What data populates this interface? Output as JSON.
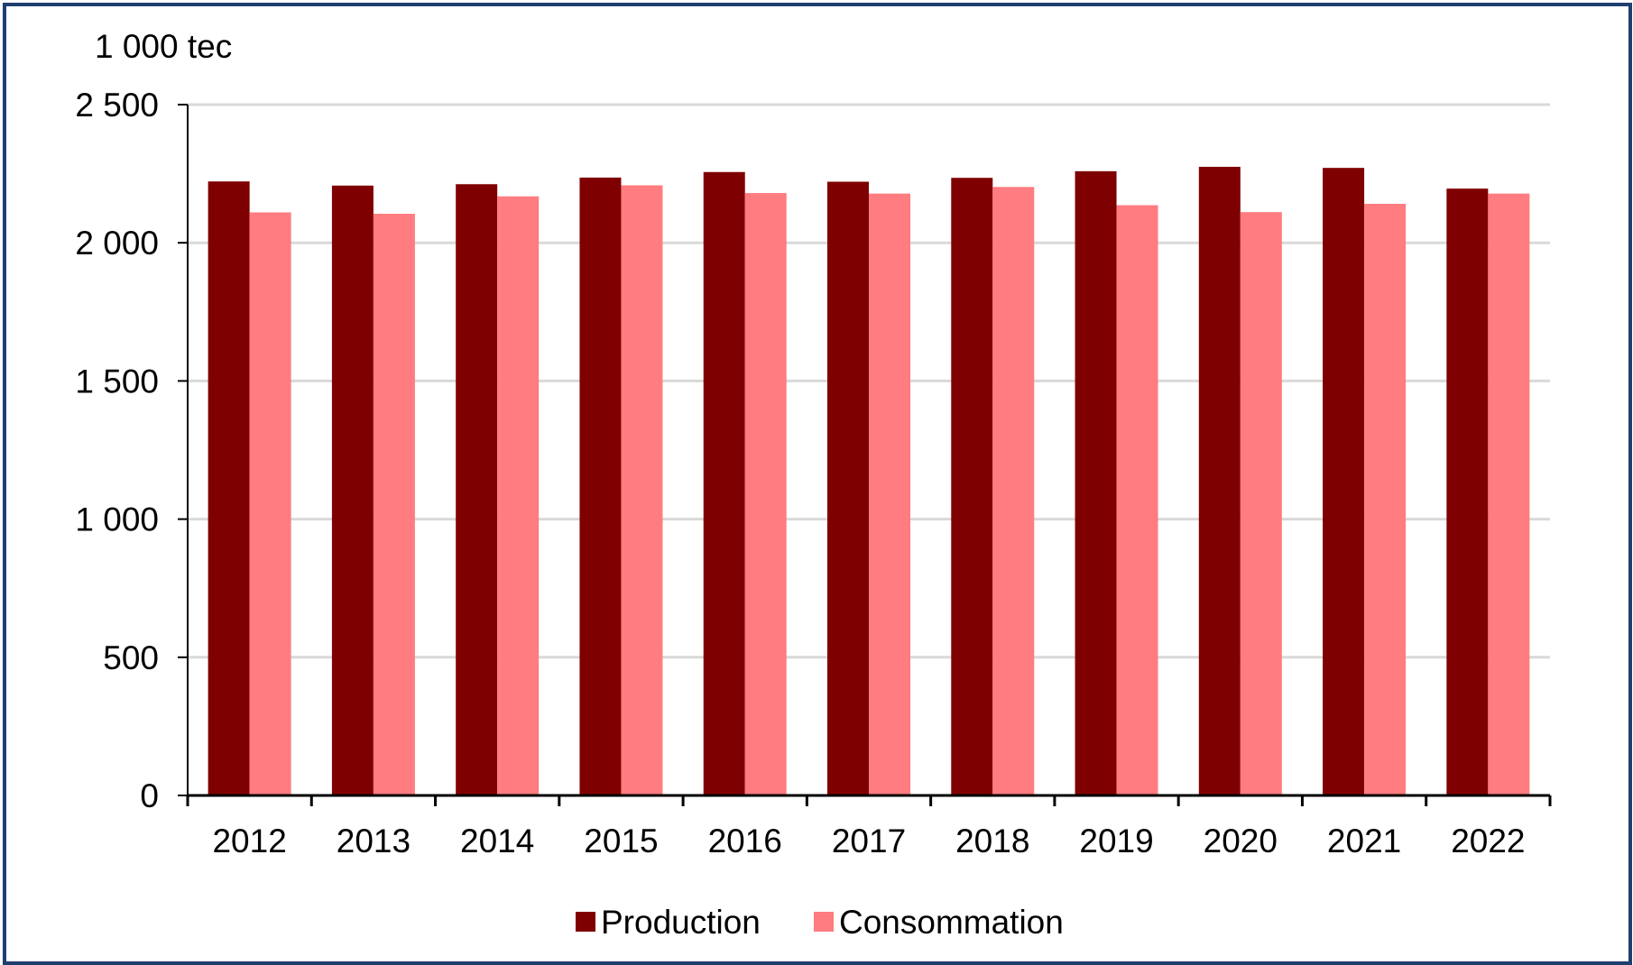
{
  "chart_data": {
    "type": "bar",
    "unit_label": "1 000 tec",
    "categories": [
      "2012",
      "2013",
      "2014",
      "2015",
      "2016",
      "2017",
      "2018",
      "2019",
      "2020",
      "2021",
      "2022"
    ],
    "series": [
      {
        "name": "Production",
        "color": "#7f0000",
        "values": [
          2222,
          2207,
          2212,
          2236,
          2256,
          2221,
          2235,
          2259,
          2275,
          2271,
          2196
        ]
      },
      {
        "name": "Consommation",
        "color": "#ff7c80",
        "values": [
          2110,
          2105,
          2168,
          2208,
          2180,
          2178,
          2202,
          2136,
          2111,
          2141,
          2178
        ]
      }
    ],
    "y_ticks": [
      "0",
      "500",
      "1 000",
      "1 500",
      "2 000",
      "2 500"
    ],
    "ylim": [
      0,
      2500
    ],
    "grid": true,
    "legend_position": "bottom"
  }
}
